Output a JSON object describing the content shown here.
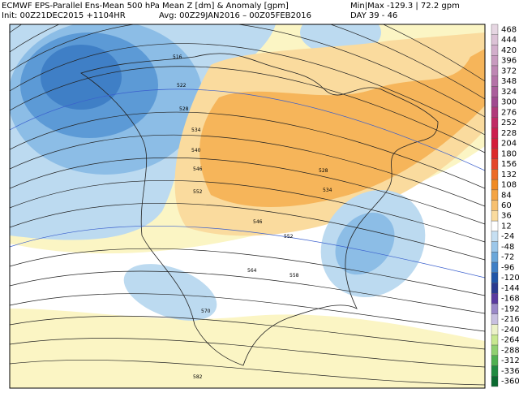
{
  "header": {
    "title": "ECMWF EPS-Parallel Ens-Mean 500 hPa Mean Z [dm] & Anomaly [gpm]",
    "minmax": "Min|Max -129.3 | 72.2 gpm",
    "init": "Init: 00Z21DEC2015 +1104HR",
    "avg": "Avg: 00Z29JAN2016 – 00Z05FEB2016",
    "day": "DAY 39 - 46"
  },
  "colorbar": {
    "labels": [
      "468",
      "444",
      "420",
      "396",
      "372",
      "348",
      "324",
      "300",
      "276",
      "252",
      "228",
      "204",
      "180",
      "156",
      "132",
      "108",
      "84",
      "60",
      "36",
      "12",
      "-24",
      "-48",
      "-72",
      "-96",
      "-120",
      "-144",
      "-168",
      "-192",
      "-216",
      "-240",
      "-264",
      "-288",
      "-312",
      "-336",
      "-360"
    ],
    "colors": [
      "#e6d6e2",
      "#dcc2d6",
      "#d2aecb",
      "#c89abf",
      "#be86b3",
      "#b472a7",
      "#aa5e9b",
      "#a04a8f",
      "#b03a7a",
      "#c02a64",
      "#cc1e4e",
      "#d41c3a",
      "#dc2a2a",
      "#e4462a",
      "#ec6a26",
      "#f08a24",
      "#f4a444",
      "#f7c070",
      "#fadb9e",
      "#ffffff",
      "#c6dff2",
      "#9cc7ea",
      "#6ba7da",
      "#3e7fc6",
      "#1f55a8",
      "#2a3a90",
      "#5a3aa0",
      "#9a88c8",
      "#c8c0e0",
      "#ecf2c8",
      "#c8e890",
      "#90d070",
      "#50b050",
      "#208a40",
      "#0a6a30"
    ]
  },
  "contour_labels": [
    "516",
    "522",
    "528",
    "534",
    "540",
    "546",
    "552",
    "546",
    "552",
    "558",
    "564",
    "570",
    "582",
    "528",
    "534"
  ]
}
